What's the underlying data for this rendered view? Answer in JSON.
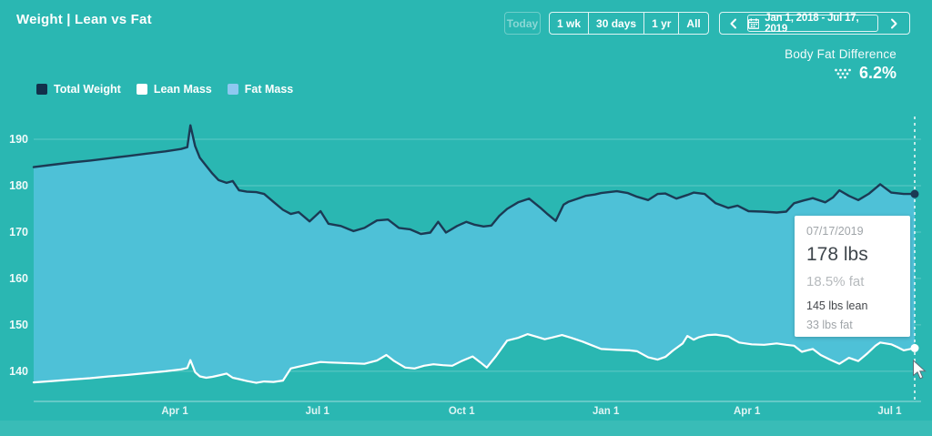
{
  "header": {
    "title": "Weight | Lean vs Fat",
    "today_label": "Today",
    "ranges": [
      "1 wk",
      "30 days",
      "1 yr",
      "All"
    ],
    "date_range": "Jan 1, 2018 - Jul 17, 2019"
  },
  "body_fat_difference": {
    "label": "Body Fat Difference",
    "value": "6.2%"
  },
  "legend": [
    {
      "label": "Total Weight",
      "color": "#12304b"
    },
    {
      "label": "Lean Mass",
      "color": "#ffffff"
    },
    {
      "label": "Fat Mass",
      "color": "#8ec8f0"
    }
  ],
  "tooltip": {
    "date": "07/17/2019",
    "weight": "178 lbs",
    "fat_pct": "18.5% fat",
    "lean": "145 lbs lean",
    "fat": "33 lbs fat"
  },
  "colors": {
    "background": "#2ab7b2",
    "fat_band_fill": "#4ec1d7",
    "total_line": "#1b3a54",
    "lean_line": "#ffffff",
    "grid": "rgba(255,255,255,0.25)",
    "baseline": "rgba(255,255,255,0.55)",
    "cursor_dash": "rgba(255,255,255,0.95)"
  },
  "chart_data": {
    "type": "area",
    "title": "Weight | Lean vs Fat",
    "unit": "lbs",
    "x_unit": "days since Jan 1, 2018",
    "x_range": [
      0,
      562
    ],
    "ylim": [
      133.5,
      195
    ],
    "y_ticks": [
      140,
      150,
      160,
      170,
      180,
      190
    ],
    "x_ticks": [
      {
        "day": 90,
        "label": "Apr 1"
      },
      {
        "day": 181,
        "label": "Jul 1"
      },
      {
        "day": 273,
        "label": "Oct 1"
      },
      {
        "day": 365,
        "label": "Jan 1"
      },
      {
        "day": 455,
        "label": "Apr 1"
      },
      {
        "day": 546,
        "label": "Jul 1"
      }
    ],
    "grid": true,
    "legend_position": "top-left",
    "band": {
      "name": "Fat Mass",
      "between": [
        "Total Weight",
        "Lean Mass"
      ]
    },
    "cursor_day": 562,
    "series": [
      {
        "name": "Total Weight",
        "points": [
          [
            0,
            184
          ],
          [
            12,
            184.5
          ],
          [
            24,
            185
          ],
          [
            36,
            185.4
          ],
          [
            48,
            185.9
          ],
          [
            60,
            186.4
          ],
          [
            72,
            186.9
          ],
          [
            84,
            187.4
          ],
          [
            94,
            187.9
          ],
          [
            98,
            188.3
          ],
          [
            100,
            193
          ],
          [
            103,
            188.5
          ],
          [
            106,
            186
          ],
          [
            110,
            184.3
          ],
          [
            114,
            182.6
          ],
          [
            118,
            181.2
          ],
          [
            123,
            180.6
          ],
          [
            127,
            181
          ],
          [
            131,
            179
          ],
          [
            136,
            178.7
          ],
          [
            142,
            178.6
          ],
          [
            147,
            178.2
          ],
          [
            153,
            176.5
          ],
          [
            159,
            174.8
          ],
          [
            164,
            173.9
          ],
          [
            169,
            174.3
          ],
          [
            176,
            172.3
          ],
          [
            183,
            174.5
          ],
          [
            188,
            171.8
          ],
          [
            196,
            171.3
          ],
          [
            204,
            170.2
          ],
          [
            211,
            170.9
          ],
          [
            219,
            172.5
          ],
          [
            226,
            172.7
          ],
          [
            233,
            170.9
          ],
          [
            240,
            170.6
          ],
          [
            247,
            169.6
          ],
          [
            253,
            169.9
          ],
          [
            258,
            172.2
          ],
          [
            263,
            169.9
          ],
          [
            270,
            171.3
          ],
          [
            276,
            172.2
          ],
          [
            281,
            171.6
          ],
          [
            287,
            171.2
          ],
          [
            292,
            171.4
          ],
          [
            297,
            173.5
          ],
          [
            302,
            175
          ],
          [
            309,
            176.4
          ],
          [
            316,
            177.2
          ],
          [
            323,
            175.3
          ],
          [
            328,
            173.8
          ],
          [
            333,
            172.4
          ],
          [
            338,
            175.9
          ],
          [
            341,
            176.5
          ],
          [
            347,
            177.2
          ],
          [
            352,
            177.8
          ],
          [
            358,
            178.1
          ],
          [
            362,
            178.4
          ],
          [
            372,
            178.8
          ],
          [
            379,
            178.4
          ],
          [
            385,
            177.6
          ],
          [
            392,
            176.9
          ],
          [
            398,
            178.2
          ],
          [
            403,
            178.3
          ],
          [
            410,
            177.2
          ],
          [
            417,
            178
          ],
          [
            421,
            178.5
          ],
          [
            428,
            178.2
          ],
          [
            435,
            176.2
          ],
          [
            443,
            175.2
          ],
          [
            449,
            175.7
          ],
          [
            456,
            174.5
          ],
          [
            465,
            174.4
          ],
          [
            474,
            174.2
          ],
          [
            480,
            174.4
          ],
          [
            485,
            176.2
          ],
          [
            491,
            176.8
          ],
          [
            497,
            177.3
          ],
          [
            505,
            176.4
          ],
          [
            510,
            177.5
          ],
          [
            514,
            179
          ],
          [
            520,
            177.8
          ],
          [
            526,
            176.9
          ],
          [
            533,
            178.3
          ],
          [
            540,
            180.3
          ],
          [
            547,
            178.5
          ],
          [
            555,
            178.2
          ],
          [
            562,
            178.2
          ]
        ]
      },
      {
        "name": "Lean Mass",
        "points": [
          [
            0,
            137.6
          ],
          [
            12,
            137.9
          ],
          [
            24,
            138.2
          ],
          [
            36,
            138.5
          ],
          [
            48,
            138.9
          ],
          [
            60,
            139.2
          ],
          [
            72,
            139.6
          ],
          [
            84,
            140
          ],
          [
            94,
            140.4
          ],
          [
            98,
            140.7
          ],
          [
            100,
            142.4
          ],
          [
            103,
            139.8
          ],
          [
            106,
            138.9
          ],
          [
            110,
            138.6
          ],
          [
            114,
            138.8
          ],
          [
            118,
            139.1
          ],
          [
            123,
            139.5
          ],
          [
            127,
            138.6
          ],
          [
            131,
            138.3
          ],
          [
            136,
            137.9
          ],
          [
            142,
            137.5
          ],
          [
            147,
            137.8
          ],
          [
            153,
            137.7
          ],
          [
            159,
            138
          ],
          [
            164,
            140.6
          ],
          [
            169,
            141
          ],
          [
            176,
            141.5
          ],
          [
            183,
            142
          ],
          [
            188,
            141.9
          ],
          [
            196,
            141.8
          ],
          [
            204,
            141.7
          ],
          [
            211,
            141.6
          ],
          [
            219,
            142.3
          ],
          [
            225,
            143.5
          ],
          [
            230,
            142.2
          ],
          [
            237,
            140.8
          ],
          [
            243,
            140.6
          ],
          [
            249,
            141.2
          ],
          [
            255,
            141.5
          ],
          [
            261,
            141.3
          ],
          [
            267,
            141.2
          ],
          [
            273,
            142.2
          ],
          [
            280,
            143.2
          ],
          [
            285,
            141.9
          ],
          [
            289,
            140.8
          ],
          [
            295,
            143.3
          ],
          [
            302,
            146.6
          ],
          [
            309,
            147.2
          ],
          [
            315,
            148
          ],
          [
            321,
            147.4
          ],
          [
            326,
            146.9
          ],
          [
            331,
            147.3
          ],
          [
            337,
            147.8
          ],
          [
            343,
            147.2
          ],
          [
            350,
            146.4
          ],
          [
            356,
            145.6
          ],
          [
            362,
            144.8
          ],
          [
            372,
            144.6
          ],
          [
            380,
            144.5
          ],
          [
            385,
            144.3
          ],
          [
            392,
            143
          ],
          [
            398,
            142.5
          ],
          [
            403,
            143.1
          ],
          [
            408,
            144.5
          ],
          [
            414,
            146
          ],
          [
            417,
            147.6
          ],
          [
            421,
            146.8
          ],
          [
            424,
            147.3
          ],
          [
            430,
            147.8
          ],
          [
            435,
            147.9
          ],
          [
            443,
            147.5
          ],
          [
            450,
            146.2
          ],
          [
            458,
            145.8
          ],
          [
            466,
            145.7
          ],
          [
            474,
            146
          ],
          [
            480,
            145.7
          ],
          [
            485,
            145.5
          ],
          [
            490,
            144.2
          ],
          [
            497,
            144.8
          ],
          [
            502,
            143.5
          ],
          [
            508,
            142.5
          ],
          [
            514,
            141.6
          ],
          [
            520,
            142.9
          ],
          [
            526,
            142.2
          ],
          [
            532,
            143.9
          ],
          [
            537,
            145.5
          ],
          [
            540,
            146.2
          ],
          [
            547,
            145.8
          ],
          [
            551,
            145.2
          ],
          [
            555,
            144.5
          ],
          [
            562,
            145
          ]
        ]
      }
    ]
  }
}
